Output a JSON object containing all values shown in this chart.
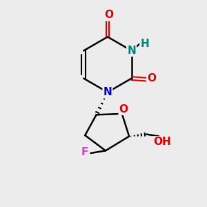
{
  "bg_color": "#ececec",
  "bond_color": "#000000",
  "N_color": "#0000cc",
  "O_color": "#dd0000",
  "F_color": "#cc44cc",
  "NH_color": "#008080",
  "figsize": [
    3.0,
    3.0
  ],
  "dpi": 100,
  "xlim": [
    0,
    10
  ],
  "ylim": [
    0,
    10
  ]
}
